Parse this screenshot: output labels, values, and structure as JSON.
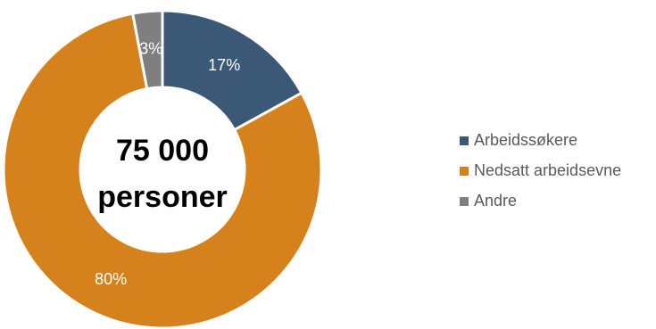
{
  "chart_data": {
    "type": "pie",
    "donut": true,
    "center_text": [
      "75 000",
      "personer"
    ],
    "categories": [
      "Arbeidssøkere",
      "Nedsatt arbeidsevne",
      "Andre"
    ],
    "values": [
      17,
      80,
      3
    ],
    "data_labels": [
      "17%",
      "80%",
      "3%"
    ],
    "colors": [
      "#3b5876",
      "#d6821c",
      "#7f7f7f"
    ],
    "legend_position": "right"
  }
}
